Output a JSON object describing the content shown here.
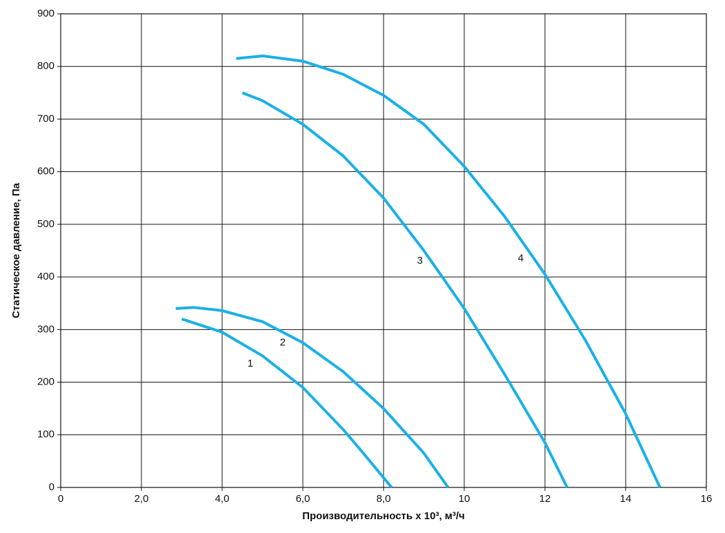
{
  "chart_data": {
    "type": "line",
    "x_label": "Производительность x 10³, м³/ч",
    "y_label": "Статическое давление, Па",
    "xlim": [
      0,
      16
    ],
    "xticks": [
      0,
      {
        "value": 2,
        "label": "2,0"
      },
      {
        "value": 4,
        "label": "4,0"
      },
      {
        "value": 6,
        "label": "6,0"
      },
      {
        "value": 8,
        "label": "8,0"
      },
      10,
      12,
      14,
      16
    ],
    "ylim": [
      0,
      900
    ],
    "yticks": [
      0,
      100,
      200,
      300,
      400,
      500,
      600,
      700,
      800,
      900
    ],
    "grid": true,
    "series": [
      {
        "name": "1",
        "color": "#1ab0e8",
        "x": [
          3.0,
          4.0,
          5.0,
          6.0,
          7.0,
          7.5,
          8.2
        ],
        "values": [
          320,
          295,
          250,
          190,
          110,
          65,
          0
        ]
      },
      {
        "name": "2",
        "color": "#1ab0e8",
        "x": [
          2.85,
          3.3,
          4.0,
          5.0,
          6.0,
          7.0,
          8.0,
          9.0,
          9.6
        ],
        "values": [
          340,
          342,
          336,
          315,
          275,
          220,
          150,
          65,
          0
        ]
      },
      {
        "name": "3",
        "color": "#1ab0e8",
        "x": [
          4.5,
          5.0,
          6.0,
          7.0,
          8.0,
          9.0,
          10.0,
          11.0,
          12.0,
          12.55
        ],
        "values": [
          750,
          735,
          690,
          630,
          550,
          450,
          340,
          215,
          85,
          0
        ]
      },
      {
        "name": "4",
        "color": "#1ab0e8",
        "x": [
          4.35,
          5.0,
          6.0,
          7.0,
          8.0,
          9.0,
          10.0,
          11.0,
          12.0,
          13.0,
          14.0,
          14.85
        ],
        "values": [
          815,
          820,
          810,
          785,
          745,
          690,
          610,
          515,
          405,
          280,
          140,
          0
        ]
      }
    ]
  }
}
